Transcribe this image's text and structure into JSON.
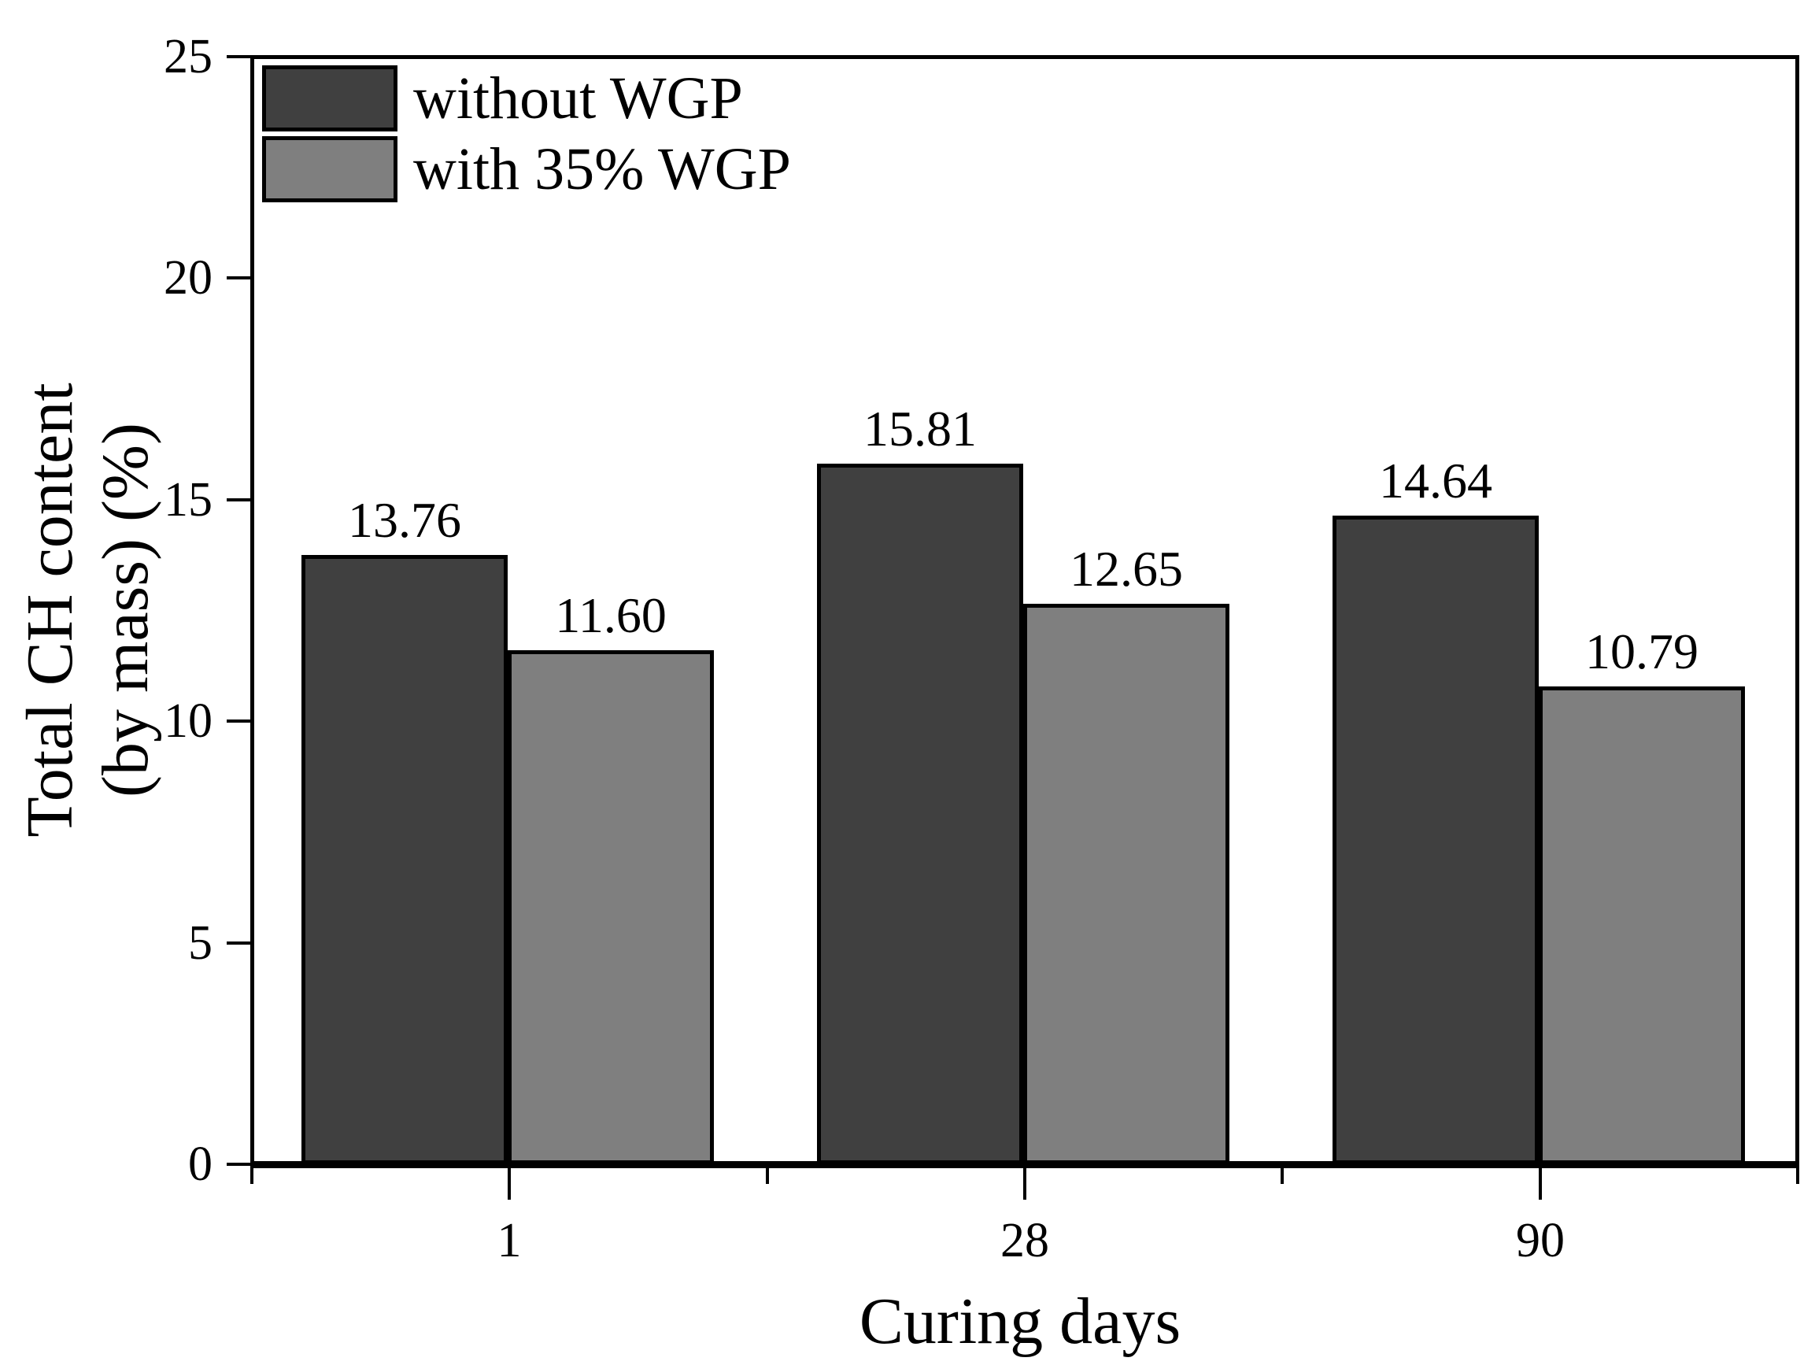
{
  "figure": {
    "background": "#ffffff",
    "text_color": "#000000",
    "axis_color": "#000000"
  },
  "chart_data": {
    "type": "bar",
    "title": "",
    "xlabel": "Curing days",
    "ylabel": "Total CH content (by mass) (%)",
    "ylabel_line1": "Total CH content",
    "ylabel_line2": "(by mass) (%)",
    "categories": [
      "1",
      "28",
      "90"
    ],
    "series": [
      {
        "name": "without WGP",
        "color": "#404040",
        "values": [
          13.76,
          15.81,
          14.64
        ],
        "value_labels": [
          "13.76",
          "15.81",
          "14.64"
        ]
      },
      {
        "name": "with 35% WGP",
        "color": "#7f7f7f",
        "values": [
          11.6,
          12.65,
          10.79
        ],
        "value_labels": [
          "11.60",
          "12.65",
          "10.79"
        ]
      }
    ],
    "ylim": [
      0,
      25
    ],
    "yticks": [
      0,
      5,
      10,
      15,
      20,
      25
    ],
    "grid": false,
    "legend_position": "top-left-inside",
    "bar_value_labels": true
  }
}
